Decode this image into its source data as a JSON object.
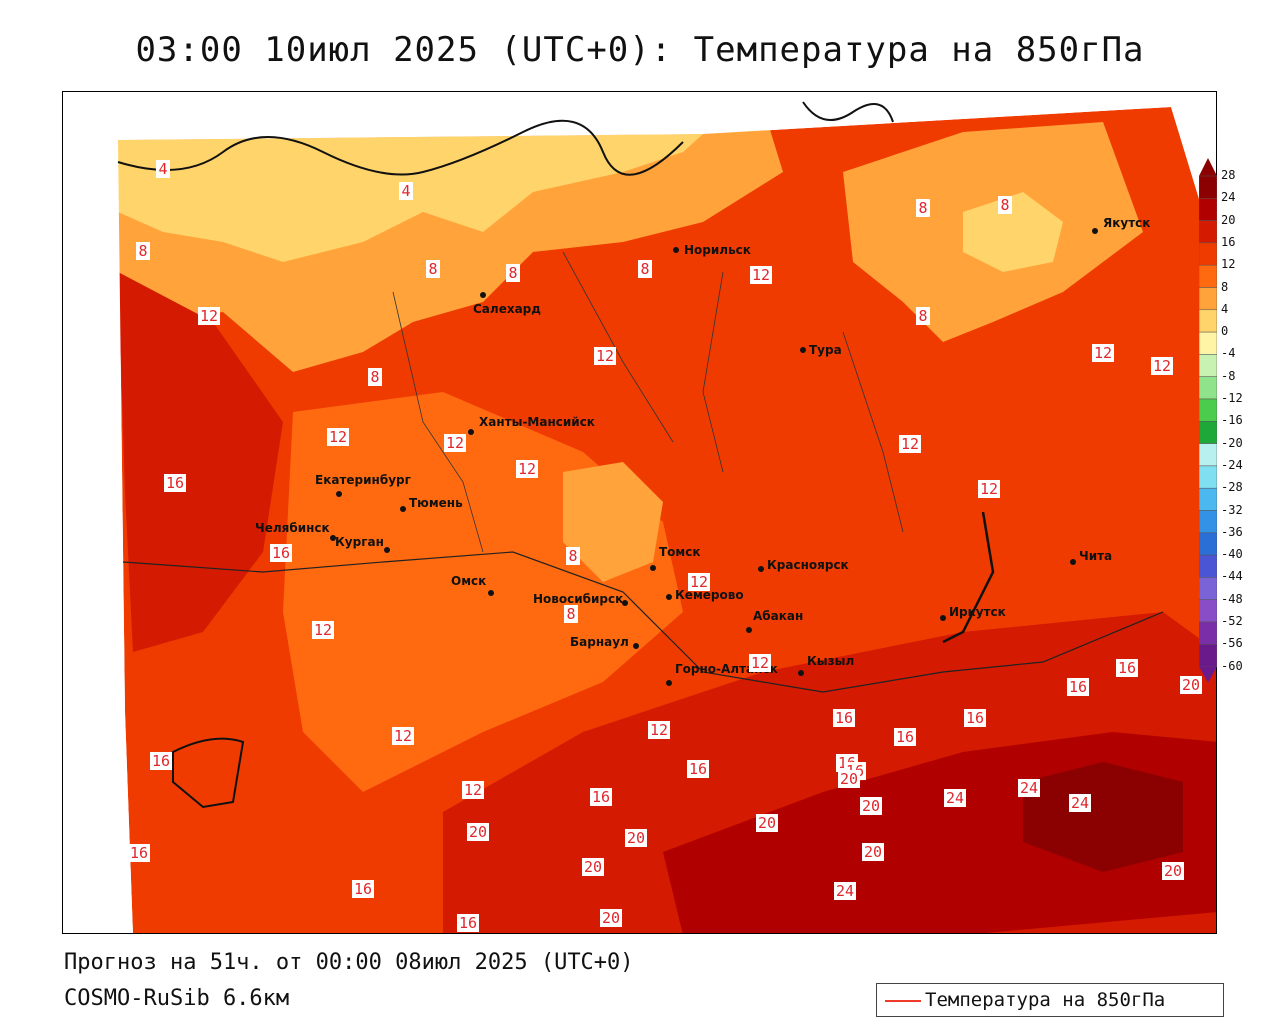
{
  "title": "03:00 10июл 2025 (UTC+0): Температура на 850гПа",
  "footer": {
    "forecast": "Прогноз на 51ч. от 00:00 08июл 2025 (UTC+0)",
    "model": "COSMO-RuSib 6.6км"
  },
  "legend": {
    "label": "Температура на 850гПа",
    "line_color": "#ef3b2c"
  },
  "colorbar": {
    "levels": [
      "28",
      "24",
      "20",
      "16",
      "12",
      "8",
      "4",
      "0",
      "-4",
      "-8",
      "-12",
      "-16",
      "-20",
      "-24",
      "-28",
      "-32",
      "-36",
      "-40",
      "-44",
      "-48",
      "-52",
      "-56",
      "-60"
    ],
    "colors": [
      "#8b0000",
      "#b00000",
      "#d41a00",
      "#ef3b00",
      "#ff6a10",
      "#ffa33a",
      "#ffd46a",
      "#fff3a6",
      "#c8f2b2",
      "#8fe38a",
      "#4ccc4c",
      "#1ea83a",
      "#b8f0f0",
      "#80dff0",
      "#4cb8f0",
      "#3392e6",
      "#2a6fd6",
      "#4a55d6",
      "#7a63d6",
      "#8a4dc8",
      "#7a2fa8",
      "#6a1a8a"
    ]
  },
  "cities": [
    {
      "name": "Норильск"
    },
    {
      "name": "Салехард"
    },
    {
      "name": "Ханты-Мансийск"
    },
    {
      "name": "Тура"
    },
    {
      "name": "Якутск"
    },
    {
      "name": "Екатеринбург"
    },
    {
      "name": "Тюмень"
    },
    {
      "name": "Челябинск"
    },
    {
      "name": "Курган"
    },
    {
      "name": "Омск"
    },
    {
      "name": "Томск"
    },
    {
      "name": "Новосибирск"
    },
    {
      "name": "Кемерово"
    },
    {
      "name": "Красноярск"
    },
    {
      "name": "Абакан"
    },
    {
      "name": "Барнаул"
    },
    {
      "name": "Горно-Алтайск"
    },
    {
      "name": "Кызыл"
    },
    {
      "name": "Иркутск"
    },
    {
      "name": "Чита"
    }
  ],
  "isoline_labels": [
    "4",
    "4",
    "8",
    "8",
    "8",
    "8",
    "8",
    "8",
    "8",
    "8",
    "8",
    "8",
    "12",
    "12",
    "12",
    "12",
    "12",
    "12",
    "12",
    "12",
    "12",
    "12",
    "12",
    "12",
    "12",
    "12",
    "12",
    "12",
    "16",
    "16",
    "16",
    "16",
    "16",
    "16",
    "16",
    "16",
    "16",
    "16",
    "16",
    "16",
    "16",
    "16",
    "16",
    "20",
    "20",
    "20",
    "20",
    "20",
    "20",
    "20",
    "20",
    "20",
    "20",
    "24",
    "24",
    "24",
    "24",
    "24"
  ]
}
